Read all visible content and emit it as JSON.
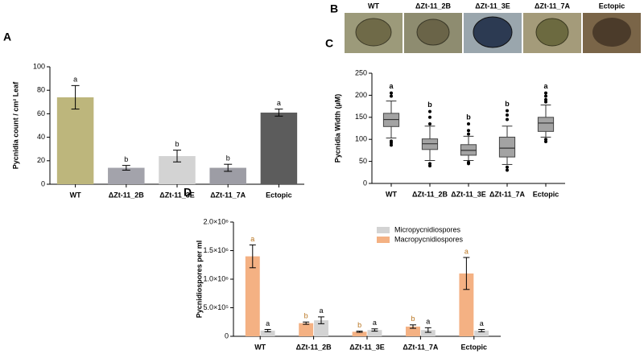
{
  "image_panel": {
    "panel_label": "B",
    "labels": [
      "WT",
      "ΔZt-11_2B",
      "ΔZt-11_3E",
      "ΔZt-11_7A",
      "Ectopic"
    ]
  },
  "chart_data": [
    {
      "type": "bar",
      "panel_label": "A",
      "y_label": "Pycnidia count / cm² Leaf",
      "categories": [
        "WT",
        "ΔZt-11_2B",
        "ΔZt-11_3E",
        "ΔZt-11_7A",
        "Ectopic"
      ],
      "values": [
        74,
        14,
        24,
        14,
        61
      ],
      "errors": [
        10,
        2,
        5,
        3,
        3
      ],
      "letters": [
        "a",
        "b",
        "b",
        "b",
        "a"
      ],
      "colors": [
        "#bdb67c",
        "#a3a3ab",
        "#d3d3d3",
        "#9d9da5",
        "#5c5c5c"
      ],
      "ylim": [
        0,
        100
      ],
      "yticks": [
        0,
        20,
        40,
        60,
        80,
        100
      ]
    },
    {
      "type": "box",
      "panel_label": "C",
      "y_label": "Pycnidia Width (µM)",
      "categories": [
        "WT",
        "ΔZt-11_2B",
        "ΔZt-11_3E",
        "ΔZt-11_7A",
        "Ectopic"
      ],
      "boxes": [
        {
          "whislo": 103,
          "q1": 129,
          "med": 145,
          "q3": 159,
          "whishi": 187,
          "fliers": [
            87,
            92,
            96,
            198,
            205
          ]
        },
        {
          "whislo": 52,
          "q1": 77,
          "med": 90,
          "q3": 101,
          "whishi": 130,
          "fliers": [
            40,
            45,
            135,
            150,
            163
          ]
        },
        {
          "whislo": 52,
          "q1": 64,
          "med": 75,
          "q3": 88,
          "whishi": 107,
          "fliers": [
            45,
            48,
            112,
            120,
            135
          ]
        },
        {
          "whislo": 43,
          "q1": 60,
          "med": 80,
          "q3": 105,
          "whishi": 130,
          "fliers": [
            30,
            37,
            145,
            155,
            165
          ]
        },
        {
          "whislo": 105,
          "q1": 118,
          "med": 137,
          "q3": 150,
          "whishi": 178,
          "fliers": [
            95,
            100,
            185,
            190,
            198,
            205
          ]
        }
      ],
      "letters": [
        "a",
        "b",
        "b",
        "b",
        "a"
      ],
      "color": "#a3a3a3",
      "ylim": [
        0,
        250
      ],
      "yticks": [
        0,
        50,
        100,
        150,
        200,
        250
      ]
    },
    {
      "type": "grouped_bar",
      "panel_label": "D",
      "y_label": "Pycnidiospores per ml",
      "categories": [
        "WT",
        "ΔZt-11_2B",
        "ΔZt-11_3E",
        "ΔZt-11_7A",
        "Ectopic"
      ],
      "series": [
        {
          "name": "Macropycnidiospores",
          "color": "#f4b183",
          "letter_color": "#b8741f",
          "values": [
            1400000,
            230000,
            80000,
            170000,
            1100000
          ],
          "errors": [
            200000,
            20000,
            10000,
            30000,
            280000
          ],
          "letters": [
            "a",
            "b",
            "b",
            "b",
            "a"
          ]
        },
        {
          "name": "Micropycnidiospores",
          "color": "#d3d3d3",
          "letter_color": "#000000",
          "values": [
            100000,
            280000,
            110000,
            110000,
            100000
          ],
          "errors": [
            20000,
            60000,
            20000,
            40000,
            20000
          ],
          "letters": [
            "a",
            "a",
            "a",
            "a",
            "a"
          ]
        }
      ],
      "ylim": [
        0,
        2000000
      ],
      "yticks": [
        0,
        {
          "value": 500000,
          "label": "5.0×10⁵"
        },
        {
          "value": 1000000,
          "label": "1.0×10⁶"
        },
        {
          "value": 1500000,
          "label": "1.5×10⁶"
        },
        {
          "value": 2000000,
          "label": "2.0×10⁶"
        }
      ]
    }
  ]
}
